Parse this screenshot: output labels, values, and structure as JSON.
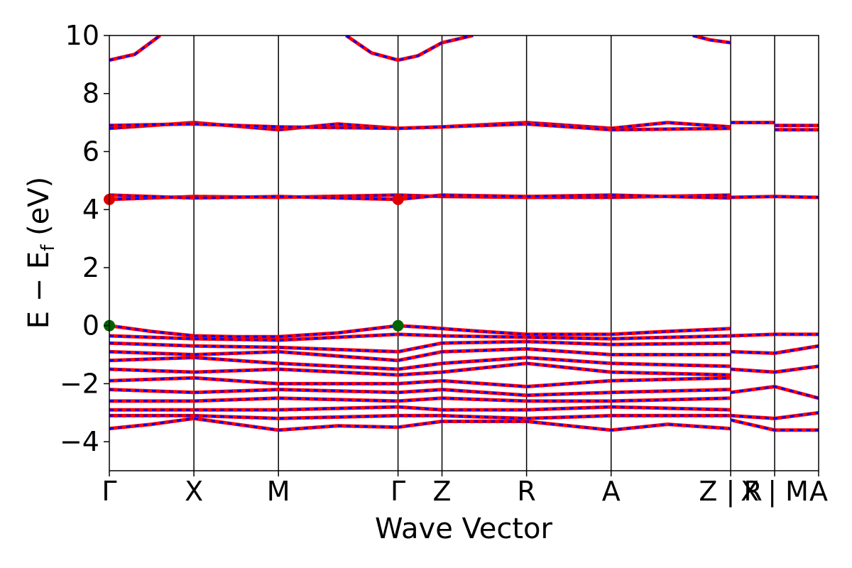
{
  "chart_data": {
    "type": "line",
    "title": "",
    "xlabel": "Wave Vector",
    "ylabel_parts": {
      "main": "E − E",
      "sub": "f",
      "unit": " (eV)"
    },
    "ylim": [
      -5,
      10
    ],
    "yticks": [
      -4,
      -2,
      0,
      2,
      4,
      6,
      8,
      10
    ],
    "ytick_labels": [
      "−4",
      "−2",
      "0",
      "2",
      "4",
      "6",
      "8",
      "10"
    ],
    "kpoints": [
      {
        "label": "Γ",
        "x": 0
      },
      {
        "label": "X",
        "x": 1
      },
      {
        "label": "M",
        "x": 2
      },
      {
        "label": "Γ",
        "x": 3.414
      },
      {
        "label": "Z",
        "x": 3.934
      },
      {
        "label": "R",
        "x": 4.934
      },
      {
        "label": "A",
        "x": 5.934
      },
      {
        "label": "Z | R",
        "x": 7.348
      },
      {
        "label": "X | M",
        "x": 7.868
      },
      {
        "label": "A",
        "x": 8.388
      }
    ],
    "band_colors": {
      "spin_up": "#0000ff",
      "spin_down": "#ff0000"
    },
    "vbm_color": "#006400",
    "cbm_color": "#dd0000",
    "vbm_points": [
      {
        "x": 0,
        "y": 0.0
      },
      {
        "x": 3.414,
        "y": 0.0
      }
    ],
    "cbm_points": [
      {
        "x": 0,
        "y": 4.35
      },
      {
        "x": 3.414,
        "y": 4.35
      }
    ],
    "bands": [
      {
        "x": [
          0,
          0.5,
          1,
          1.5,
          2,
          2.7,
          3.414,
          3.7,
          3.934,
          4.4,
          4.934,
          5.4,
          5.934,
          6.6,
          7.348
        ],
        "y": [
          0.0,
          -0.2,
          -0.35,
          -0.38,
          -0.38,
          -0.25,
          0.0,
          -0.05,
          -0.1,
          -0.2,
          -0.3,
          -0.3,
          -0.3,
          -0.2,
          -0.1
        ]
      },
      {
        "x": [
          0,
          1,
          2,
          3.414,
          3.934,
          4.934,
          5.934,
          7.348
        ],
        "y": [
          -0.35,
          -0.45,
          -0.5,
          -0.3,
          -0.35,
          -0.4,
          -0.45,
          -0.35
        ]
      },
      {
        "x": [
          0,
          1,
          2,
          3.414,
          3.934,
          4.934,
          5.934,
          7.348
        ],
        "y": [
          -0.6,
          -0.7,
          -0.75,
          -0.9,
          -0.6,
          -0.55,
          -0.65,
          -0.6
        ]
      },
      {
        "x": [
          0,
          1,
          2,
          3.414,
          3.934,
          4.934,
          5.934,
          7.348
        ],
        "y": [
          -0.9,
          -1.0,
          -0.9,
          -1.2,
          -0.9,
          -0.8,
          -1.0,
          -1.0
        ]
      },
      {
        "x": [
          0,
          1,
          2,
          3.414,
          3.934,
          4.934,
          5.934,
          7.348
        ],
        "y": [
          -1.2,
          -1.1,
          -1.3,
          -1.5,
          -1.3,
          -1.1,
          -1.3,
          -1.4
        ]
      },
      {
        "x": [
          0,
          1,
          2,
          3.414,
          3.934,
          4.934,
          5.934,
          7.348
        ],
        "y": [
          -1.5,
          -1.6,
          -1.5,
          -1.7,
          -1.6,
          -1.3,
          -1.6,
          -1.7
        ]
      },
      {
        "x": [
          0,
          1,
          2,
          3.414,
          3.934,
          4.934,
          5.934,
          7.348
        ],
        "y": [
          -1.9,
          -1.8,
          -2.0,
          -2.0,
          -1.9,
          -2.1,
          -1.9,
          -1.8
        ]
      },
      {
        "x": [
          0,
          1,
          2,
          3.414,
          3.934,
          4.934,
          5.934,
          7.348
        ],
        "y": [
          -2.2,
          -2.3,
          -2.2,
          -2.3,
          -2.2,
          -2.4,
          -2.3,
          -2.2
        ]
      },
      {
        "x": [
          0,
          1,
          2,
          3.414,
          3.934,
          4.934,
          5.934,
          7.348
        ],
        "y": [
          -2.6,
          -2.6,
          -2.5,
          -2.6,
          -2.5,
          -2.6,
          -2.6,
          -2.5
        ]
      },
      {
        "x": [
          0,
          1,
          2,
          3.414,
          3.934,
          4.934,
          5.934,
          7.348
        ],
        "y": [
          -2.9,
          -2.9,
          -2.9,
          -2.8,
          -2.9,
          -2.9,
          -2.8,
          -2.9
        ]
      },
      {
        "x": [
          0,
          1,
          2,
          3.414,
          3.934,
          4.934,
          5.934,
          7.348
        ],
        "y": [
          -3.1,
          -3.1,
          -3.2,
          -3.1,
          -3.1,
          -3.2,
          -3.1,
          -3.1
        ]
      },
      {
        "x": [
          0,
          0.5,
          1,
          2,
          2.7,
          3.414,
          3.934,
          4.934,
          5.934,
          6.6,
          7.348
        ],
        "y": [
          -3.55,
          -3.4,
          -3.2,
          -3.6,
          -3.45,
          -3.5,
          -3.3,
          -3.3,
          -3.6,
          -3.4,
          -3.55
        ]
      },
      {
        "x": [
          7.348,
          7.868,
          8.388
        ],
        "y": [
          -0.35,
          -0.3,
          -0.3
        ]
      },
      {
        "x": [
          7.348,
          7.868,
          8.388
        ],
        "y": [
          -0.9,
          -0.95,
          -0.7
        ]
      },
      {
        "x": [
          7.348,
          7.868,
          8.388
        ],
        "y": [
          -1.5,
          -1.6,
          -1.4
        ]
      },
      {
        "x": [
          7.348,
          7.868,
          8.388
        ],
        "y": [
          -2.3,
          -2.1,
          -2.5
        ]
      },
      {
        "x": [
          7.348,
          7.868,
          8.388
        ],
        "y": [
          -3.1,
          -3.2,
          -3.0
        ]
      },
      {
        "x": [
          7.348,
          7.868,
          8.388
        ],
        "y": [
          -3.25,
          -3.6,
          -3.6
        ]
      },
      {
        "x": [
          0,
          1,
          2,
          3.414,
          3.934,
          4.934,
          5.934,
          7.348
        ],
        "y": [
          4.35,
          4.45,
          4.42,
          4.5,
          4.45,
          4.42,
          4.42,
          4.5
        ]
      },
      {
        "x": [
          0,
          1,
          2,
          3.414,
          3.934,
          4.934,
          5.934,
          7.348
        ],
        "y": [
          4.5,
          4.4,
          4.45,
          4.35,
          4.5,
          4.45,
          4.5,
          4.4
        ]
      },
      {
        "x": [
          7.348,
          7.868,
          8.388
        ],
        "y": [
          4.42,
          4.45,
          4.42
        ]
      },
      {
        "x": [
          0,
          1,
          2,
          2.7,
          3.414,
          3.934,
          4.934,
          5.934,
          6.6,
          7.348
        ],
        "y": [
          6.8,
          7.0,
          6.75,
          6.95,
          6.8,
          6.85,
          7.0,
          6.8,
          7.0,
          6.85
        ]
      },
      {
        "x": [
          0,
          1,
          2,
          3.414,
          3.934,
          4.934,
          5.934,
          7.348
        ],
        "y": [
          6.9,
          6.95,
          6.85,
          6.8,
          6.85,
          6.95,
          6.75,
          6.8
        ]
      },
      {
        "x": [
          7.348,
          7.868
        ],
        "y": [
          7.0,
          7.0
        ]
      },
      {
        "x": [
          7.868,
          8.388
        ],
        "y": [
          6.75,
          6.75
        ]
      },
      {
        "x": [
          7.868,
          8.388
        ],
        "y": [
          6.9,
          6.9
        ]
      },
      {
        "x": [
          0,
          0.3,
          0.6
        ],
        "y": [
          9.15,
          9.35,
          10.0
        ]
      },
      {
        "x": [
          2.8,
          3.1,
          3.414,
          3.65,
          3.934,
          4.3
        ],
        "y": [
          10.0,
          9.4,
          9.15,
          9.3,
          9.75,
          10.0
        ]
      },
      {
        "x": [
          6.9,
          7.1,
          7.348
        ],
        "y": [
          10.0,
          9.85,
          9.75
        ]
      }
    ]
  }
}
